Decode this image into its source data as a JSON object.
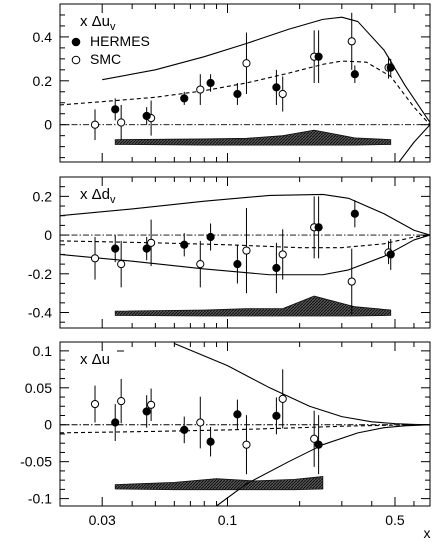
{
  "chart_data": {
    "type": "scatter",
    "x_scale": "log",
    "xlim": [
      0.02,
      0.7
    ],
    "x_ticks": [
      {
        "value": 0.03,
        "label": "0.03"
      },
      {
        "value": 0.1,
        "label": "0.1"
      },
      {
        "value": 0.5,
        "label": "0.5"
      }
    ],
    "xlabel": "x",
    "legend": {
      "placement": "top-left of first panel",
      "entries": [
        {
          "name": "HERMES",
          "marker": "filled-circle"
        },
        {
          "name": "SMC",
          "marker": "open-circle"
        }
      ]
    },
    "panels": [
      {
        "id": "du",
        "label_main": "x Δu",
        "label_sub": "v",
        "label_bar": false,
        "ylim": [
          -0.17,
          0.55
        ],
        "y_ticks": [
          {
            "value": 0.4,
            "label": "0.4"
          },
          {
            "value": 0.2,
            "label": "0.2"
          },
          {
            "value": 0,
            "label": "0"
          }
        ],
        "hermes": [
          {
            "x": 0.034,
            "y": 0.07,
            "err": 0.05
          },
          {
            "x": 0.046,
            "y": 0.04,
            "err": 0.04
          },
          {
            "x": 0.066,
            "y": 0.12,
            "err": 0.03
          },
          {
            "x": 0.085,
            "y": 0.19,
            "err": 0.04
          },
          {
            "x": 0.11,
            "y": 0.14,
            "err": 0.05
          },
          {
            "x": 0.16,
            "y": 0.17,
            "err": 0.08
          },
          {
            "x": 0.24,
            "y": 0.31,
            "err": 0.12
          },
          {
            "x": 0.34,
            "y": 0.23,
            "err": 0.04
          },
          {
            "x": 0.48,
            "y": 0.26,
            "err": 0.04
          }
        ],
        "smc": [
          {
            "x": 0.028,
            "y": 0.0,
            "err": 0.07
          },
          {
            "x": 0.036,
            "y": 0.01,
            "err": 0.08
          },
          {
            "x": 0.048,
            "y": 0.03,
            "err": 0.08
          },
          {
            "x": 0.077,
            "y": 0.16,
            "err": 0.07
          },
          {
            "x": 0.12,
            "y": 0.28,
            "err": 0.14
          },
          {
            "x": 0.17,
            "y": 0.14,
            "err": 0.08
          },
          {
            "x": 0.23,
            "y": 0.31,
            "err": 0.12
          },
          {
            "x": 0.33,
            "y": 0.38,
            "err": 0.13
          },
          {
            "x": 0.47,
            "y": 0.26,
            "err": 0.05
          }
        ],
        "curves": [
          {
            "style": "dashed",
            "x": [
              0.02,
              0.03,
              0.05,
              0.08,
              0.12,
              0.18,
              0.25,
              0.3,
              0.38,
              0.48,
              0.6,
              0.7
            ],
            "y": [
              0.09,
              0.105,
              0.125,
              0.155,
              0.19,
              0.235,
              0.275,
              0.29,
              0.285,
              0.22,
              0.08,
              0.0
            ]
          },
          {
            "style": "solid",
            "x": [
              0.03,
              0.05,
              0.08,
              0.12,
              0.18,
              0.25,
              0.3,
              0.35,
              0.45,
              0.55,
              0.7
            ],
            "y": [
              0.205,
              0.25,
              0.31,
              0.37,
              0.435,
              0.48,
              0.49,
              0.47,
              0.34,
              0.18,
              0.01
            ]
          },
          {
            "style": "solid",
            "x": [
              0.52,
              0.6,
              0.7
            ],
            "y": [
              -0.17,
              -0.08,
              0.0
            ]
          },
          {
            "style": "dashdot",
            "x": [
              0.02,
              0.7
            ],
            "y": [
              0,
              0
            ]
          }
        ],
        "systematics": {
          "baseline": -0.09,
          "x": [
            0.034,
            0.08,
            0.12,
            0.17,
            0.23,
            0.34,
            0.48
          ],
          "height": [
            0.022,
            0.025,
            0.028,
            0.04,
            0.065,
            0.03,
            0.022
          ]
        }
      },
      {
        "id": "dd",
        "label_main": "x Δd",
        "label_sub": "v",
        "label_bar": false,
        "ylim": [
          -0.48,
          0.3
        ],
        "y_ticks": [
          {
            "value": 0.2,
            "label": "0.2"
          },
          {
            "value": 0,
            "label": "0"
          },
          {
            "value": -0.2,
            "label": "-0.2"
          },
          {
            "value": -0.4,
            "label": "-0.4"
          }
        ],
        "hermes": [
          {
            "x": 0.034,
            "y": -0.07,
            "err": 0.07
          },
          {
            "x": 0.046,
            "y": -0.07,
            "err": 0.06
          },
          {
            "x": 0.066,
            "y": -0.05,
            "err": 0.06
          },
          {
            "x": 0.085,
            "y": -0.01,
            "err": 0.07
          },
          {
            "x": 0.11,
            "y": -0.15,
            "err": 0.1
          },
          {
            "x": 0.16,
            "y": -0.17,
            "err": 0.13
          },
          {
            "x": 0.24,
            "y": 0.04,
            "err": 0.16
          },
          {
            "x": 0.34,
            "y": 0.11,
            "err": 0.07
          },
          {
            "x": 0.48,
            "y": -0.1,
            "err": 0.08
          }
        ],
        "smc": [
          {
            "x": 0.028,
            "y": -0.12,
            "err": 0.11
          },
          {
            "x": 0.036,
            "y": -0.15,
            "err": 0.12
          },
          {
            "x": 0.048,
            "y": -0.04,
            "err": 0.12
          },
          {
            "x": 0.077,
            "y": -0.15,
            "err": 0.12
          },
          {
            "x": 0.12,
            "y": -0.08,
            "err": 0.22
          },
          {
            "x": 0.17,
            "y": -0.1,
            "err": 0.13
          },
          {
            "x": 0.23,
            "y": 0.04,
            "err": 0.16
          },
          {
            "x": 0.33,
            "y": -0.24,
            "err": 0.17
          },
          {
            "x": 0.47,
            "y": -0.09,
            "err": 0.06
          }
        ],
        "curves": [
          {
            "style": "solid",
            "x": [
              0.02,
              0.04,
              0.08,
              0.15,
              0.25,
              0.32,
              0.45,
              0.6,
              0.7
            ],
            "y": [
              0.1,
              0.135,
              0.175,
              0.205,
              0.21,
              0.19,
              0.11,
              0.025,
              0.0
            ]
          },
          {
            "style": "solid",
            "x": [
              0.02,
              0.04,
              0.08,
              0.15,
              0.25,
              0.32,
              0.45,
              0.6,
              0.7
            ],
            "y": [
              -0.1,
              -0.135,
              -0.175,
              -0.205,
              -0.205,
              -0.18,
              -0.11,
              -0.025,
              0.0
            ]
          },
          {
            "style": "dashed",
            "x": [
              0.02,
              0.05,
              0.1,
              0.2,
              0.3,
              0.45,
              0.6,
              0.7
            ],
            "y": [
              -0.03,
              -0.04,
              -0.05,
              -0.065,
              -0.065,
              -0.045,
              -0.01,
              0.0
            ]
          },
          {
            "style": "dashdot",
            "x": [
              0.02,
              0.7
            ],
            "y": [
              0,
              0
            ]
          }
        ],
        "systematics": {
          "baseline": -0.415,
          "x": [
            0.034,
            0.08,
            0.12,
            0.17,
            0.23,
            0.34,
            0.48
          ],
          "height": [
            0.022,
            0.028,
            0.035,
            0.035,
            0.1,
            0.045,
            0.028
          ]
        }
      },
      {
        "id": "dubar",
        "label_main": "x Δu",
        "label_sub": "",
        "label_bar": true,
        "ylim": [
          -0.11,
          0.112
        ],
        "y_ticks": [
          {
            "value": 0.1,
            "label": "0.1"
          },
          {
            "value": 0.05,
            "label": "0.05"
          },
          {
            "value": 0,
            "label": "0"
          },
          {
            "value": -0.05,
            "label": "-0.05"
          },
          {
            "value": -0.1,
            "label": "-0.1"
          }
        ],
        "hermes": [
          {
            "x": 0.034,
            "y": 0.003,
            "err": 0.025
          },
          {
            "x": 0.046,
            "y": 0.018,
            "err": 0.022
          },
          {
            "x": 0.066,
            "y": -0.007,
            "err": 0.018
          },
          {
            "x": 0.085,
            "y": -0.023,
            "err": 0.02
          },
          {
            "x": 0.11,
            "y": 0.014,
            "err": 0.02
          },
          {
            "x": 0.16,
            "y": 0.012,
            "err": 0.025
          },
          {
            "x": 0.24,
            "y": -0.027,
            "err": 0.04
          }
        ],
        "smc": [
          {
            "x": 0.028,
            "y": 0.028,
            "err": 0.025
          },
          {
            "x": 0.036,
            "y": 0.032,
            "err": 0.03
          },
          {
            "x": 0.048,
            "y": 0.027,
            "err": 0.022
          },
          {
            "x": 0.077,
            "y": 0.003,
            "err": 0.035
          },
          {
            "x": 0.12,
            "y": -0.027,
            "err": 0.04
          },
          {
            "x": 0.17,
            "y": 0.035,
            "err": 0.04
          },
          {
            "x": 0.23,
            "y": -0.019,
            "err": 0.038
          }
        ],
        "curves": [
          {
            "style": "solid",
            "x": [
              0.06,
              0.1,
              0.15,
              0.22,
              0.3,
              0.4,
              0.5,
              0.6,
              0.7
            ],
            "y": [
              0.11,
              0.08,
              0.05,
              0.025,
              0.011,
              0.004,
              0.0015,
              0.0005,
              0.0
            ]
          },
          {
            "style": "solid",
            "x": [
              0.09,
              0.12,
              0.18,
              0.25,
              0.35,
              0.45,
              0.55,
              0.7
            ],
            "y": [
              -0.11,
              -0.08,
              -0.05,
              -0.027,
              -0.011,
              -0.004,
              -0.0015,
              0.0
            ]
          },
          {
            "style": "dashed",
            "x": [
              0.02,
              0.05,
              0.1,
              0.2,
              0.3,
              0.5,
              0.7
            ],
            "y": [
              -0.011,
              -0.009,
              -0.007,
              -0.004,
              -0.002,
              -0.0005,
              0.0
            ]
          },
          {
            "style": "dashdot",
            "x": [
              0.02,
              0.7
            ],
            "y": [
              0,
              0
            ]
          }
        ],
        "systematics": {
          "baseline": -0.087,
          "x": [
            0.034,
            0.06,
            0.09,
            0.13,
            0.19,
            0.25
          ],
          "height": [
            0.006,
            0.009,
            0.014,
            0.011,
            0.013,
            0.017
          ]
        }
      }
    ]
  }
}
